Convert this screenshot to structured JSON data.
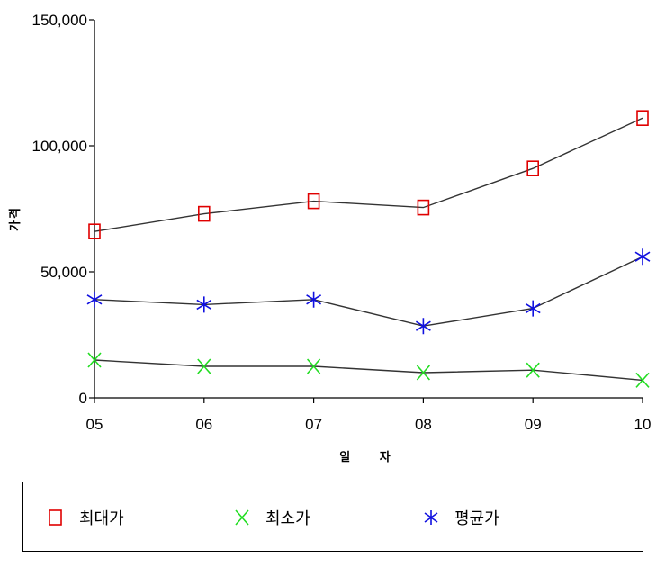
{
  "chart_data": {
    "type": "line",
    "title": "",
    "xlabel": "일 자",
    "ylabel": "가격",
    "categories": [
      "05",
      "06",
      "07",
      "08",
      "09",
      "10"
    ],
    "ylim": [
      0,
      150000
    ],
    "yticks": [
      "0",
      "50,000",
      "100,000",
      "150,000"
    ],
    "ytick_values": [
      0,
      50000,
      100000,
      150000
    ],
    "grid": false,
    "legend_position": "bottom",
    "series": [
      {
        "name": "최대가",
        "values": [
          66000,
          73000,
          78000,
          75500,
          91000,
          111000
        ],
        "color": "#e00000",
        "marker": "square"
      },
      {
        "name": "최소가",
        "values": [
          15000,
          12500,
          12500,
          10000,
          11000,
          7000
        ],
        "color": "#22dd22",
        "marker": "x"
      },
      {
        "name": "평균가",
        "values": [
          39000,
          37000,
          39000,
          28500,
          35500,
          56000
        ],
        "color": "#1010e0",
        "marker": "asterisk"
      }
    ]
  }
}
